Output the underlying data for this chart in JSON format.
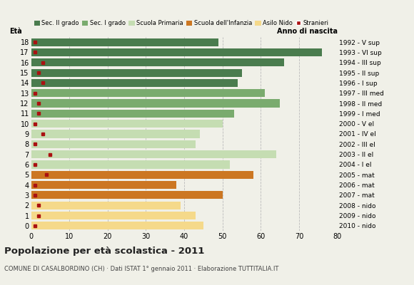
{
  "ages": [
    18,
    17,
    16,
    15,
    14,
    13,
    12,
    11,
    10,
    9,
    8,
    7,
    6,
    5,
    4,
    3,
    2,
    1,
    0
  ],
  "bar_values": [
    49,
    76,
    66,
    55,
    54,
    61,
    65,
    53,
    50,
    44,
    43,
    64,
    52,
    58,
    38,
    50,
    39,
    43,
    45
  ],
  "stranieri_values": [
    1,
    1,
    3,
    2,
    3,
    1,
    2,
    2,
    1,
    3,
    1,
    5,
    1,
    4,
    1,
    1,
    2,
    2,
    1
  ],
  "anno_nascita": [
    "1992 - V sup",
    "1993 - VI sup",
    "1994 - III sup",
    "1995 - II sup",
    "1996 - I sup",
    "1997 - III med",
    "1998 - II med",
    "1999 - I med",
    "2000 - V el",
    "2001 - IV el",
    "2002 - III el",
    "2003 - II el",
    "2004 - I el",
    "2005 - mat",
    "2006 - mat",
    "2007 - mat",
    "2008 - nido",
    "2009 - nido",
    "2010 - nido"
  ],
  "bar_colors": {
    "18": "#4a7c4e",
    "17": "#4a7c4e",
    "16": "#4a7c4e",
    "15": "#4a7c4e",
    "14": "#4a7c4e",
    "13": "#7aab6e",
    "12": "#7aab6e",
    "11": "#7aab6e",
    "10": "#c5ddb2",
    "9": "#c5ddb2",
    "8": "#c5ddb2",
    "7": "#c5ddb2",
    "6": "#c5ddb2",
    "5": "#cc7722",
    "4": "#cc7722",
    "3": "#cc7722",
    "2": "#f5d98a",
    "1": "#f5d98a",
    "0": "#f5d98a"
  },
  "legend_labels": [
    "Sec. II grado",
    "Sec. I grado",
    "Scuola Primaria",
    "Scuola dell'Infanzia",
    "Asilo Nido",
    "Stranieri"
  ],
  "legend_colors": [
    "#4a7c4e",
    "#7aab6e",
    "#c5ddb2",
    "#cc7722",
    "#f5d98a",
    "#aa1111"
  ],
  "stranieri_color": "#aa1111",
  "title": "Popolazione per età scolastica - 2011",
  "subtitle": "COMUNE DI CASALBORDINO (CH) · Dati ISTAT 1° gennaio 2011 · Elaborazione TUTTITALIA.IT",
  "label_eta": "Età",
  "label_anno": "Anno di nascita",
  "xlim": [
    0,
    80
  ],
  "xticks": [
    0,
    10,
    20,
    30,
    40,
    50,
    60,
    70,
    80
  ],
  "background_color": "#f0f0e8",
  "grid_color": "#bbbbbb"
}
